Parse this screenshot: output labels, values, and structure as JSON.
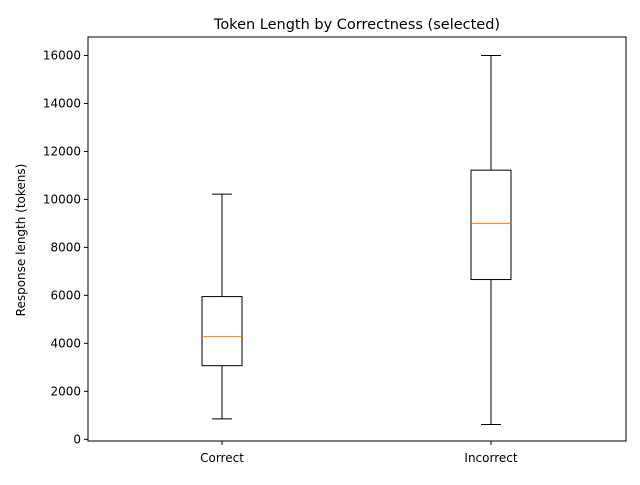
{
  "chart_data": {
    "type": "box",
    "title": "Token Length by Correctness (selected)",
    "xlabel": "",
    "ylabel": "Response length (tokens)",
    "categories": [
      "Correct",
      "Incorrect"
    ],
    "boxes": [
      {
        "label": "Correct",
        "whisker_low": 850,
        "q1": 3070,
        "median": 4280,
        "q3": 5950,
        "whisker_high": 10220
      },
      {
        "label": "Incorrect",
        "whisker_low": 620,
        "q1": 6660,
        "median": 9000,
        "q3": 11220,
        "whisker_high": 16000
      }
    ],
    "yticks": [
      0,
      2000,
      4000,
      6000,
      8000,
      10000,
      12000,
      14000,
      16000
    ],
    "ylim": [
      -70,
      16770
    ],
    "grid": false,
    "colors": {
      "box": "#000000",
      "median": "#ff7f0e",
      "axis": "#000000",
      "background": "#ffffff"
    }
  }
}
